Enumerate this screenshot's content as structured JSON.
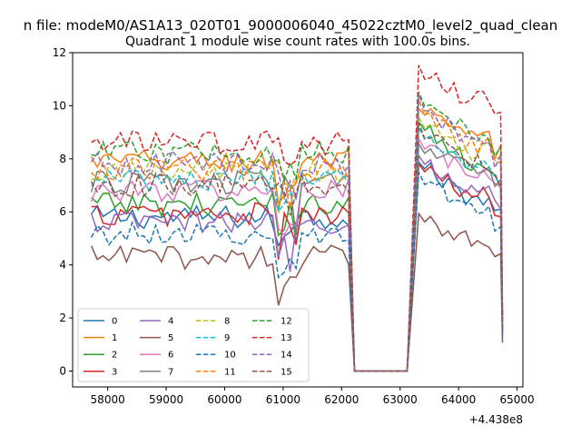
{
  "suptitle": "n file: modeM0/AS1A13_020T01_9000006040_45022cztM0_level2_quad_clean",
  "chart_data": {
    "type": "line",
    "title": "Quadrant 1 module wise count rates with 100.0s bins.",
    "xlabel": "",
    "ylabel": "",
    "x_offset_label": "+4.438e8",
    "xlim": [
      57400,
      65100
    ],
    "ylim": [
      -0.6,
      12
    ],
    "x_ticks": [
      58000,
      59000,
      60000,
      61000,
      62000,
      63000,
      64000,
      65000
    ],
    "y_ticks": [
      0,
      2,
      4,
      6,
      8,
      10,
      12
    ],
    "grid": false,
    "legend_placement": "lower-left",
    "bins": {
      "segment1_start": 57720,
      "segment1_end": 62120,
      "zero_start": 62220,
      "zero_end": 63120,
      "segment2_start": 63320,
      "segment2_end": 64720,
      "step": 100
    },
    "series": [
      {
        "name": "0",
        "color": "#1f77b4",
        "style": "solid",
        "base1": 5.8,
        "base2": 6.5,
        "peak2": 7.8
      },
      {
        "name": "1",
        "color": "#ff7f0e",
        "style": "solid",
        "base1": 7.9,
        "base2": 8.8,
        "peak2": 9.8
      },
      {
        "name": "2",
        "color": "#2ca02c",
        "style": "solid",
        "base1": 6.3,
        "base2": 7.8,
        "peak2": 9.3
      },
      {
        "name": "3",
        "color": "#d62728",
        "style": "solid",
        "base1": 5.9,
        "base2": 6.6,
        "peak2": 7.7
      },
      {
        "name": "4",
        "color": "#9467bd",
        "style": "solid",
        "base1": 5.6,
        "base2": 6.8,
        "peak2": 8.0
      },
      {
        "name": "5",
        "color": "#8c564b",
        "style": "solid",
        "base1": 4.3,
        "base2": 5.0,
        "peak2": 5.8
      },
      {
        "name": "6",
        "color": "#e377c2",
        "style": "solid",
        "base1": 6.8,
        "base2": 7.4,
        "peak2": 8.6
      },
      {
        "name": "7",
        "color": "#7f7f7f",
        "style": "solid",
        "base1": 7.1,
        "base2": 7.6,
        "peak2": 8.4
      },
      {
        "name": "8",
        "color": "#bcbd22",
        "style": "dashed",
        "base1": 7.5,
        "base2": 8.3,
        "peak2": 9.4
      },
      {
        "name": "9",
        "color": "#17becf",
        "style": "dashed",
        "base1": 7.2,
        "base2": 7.9,
        "peak2": 9.0
      },
      {
        "name": "10",
        "color": "#1f77b4",
        "style": "dashed",
        "base1": 5.2,
        "base2": 6.2,
        "peak2": 7.3
      },
      {
        "name": "11",
        "color": "#ff7f0e",
        "style": "dashed",
        "base1": 7.6,
        "base2": 8.5,
        "peak2": 10.0
      },
      {
        "name": "12",
        "color": "#2ca02c",
        "style": "dashed",
        "base1": 8.2,
        "base2": 9.0,
        "peak2": 10.3
      },
      {
        "name": "13",
        "color": "#d62728",
        "style": "dashed",
        "base1": 8.6,
        "base2": 10.2,
        "peak2": 11.3
      },
      {
        "name": "14",
        "color": "#9467bd",
        "style": "dashed",
        "base1": 7.8,
        "base2": 8.5,
        "peak2": 10.2
      },
      {
        "name": "15",
        "color": "#8c564b",
        "style": "dashed",
        "base1": 7.0,
        "base2": 7.9,
        "peak2": 9.1
      }
    ]
  }
}
